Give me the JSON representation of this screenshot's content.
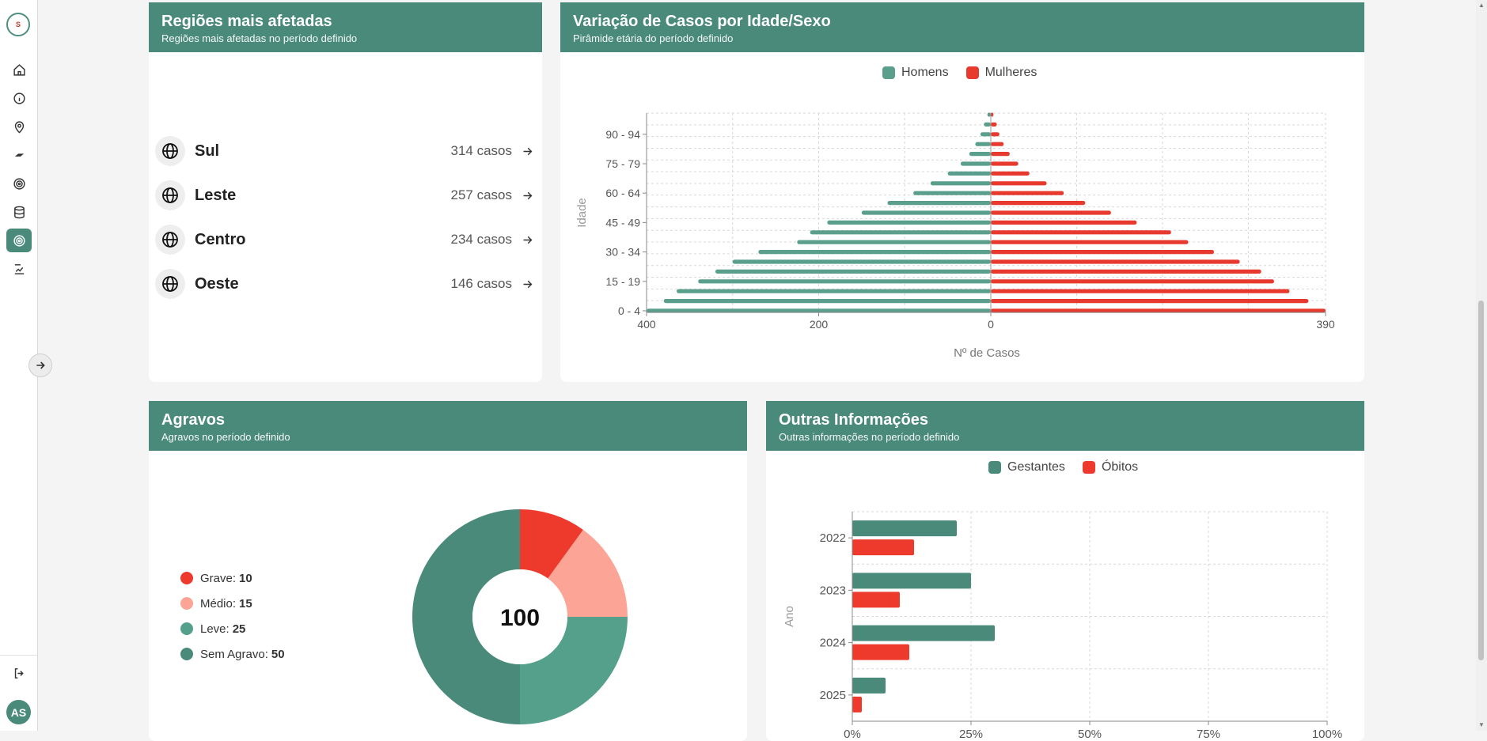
{
  "sidebar": {
    "logo_text": "S",
    "user_initials": "AS",
    "items": [
      {
        "name": "home-icon",
        "active": false
      },
      {
        "name": "info-icon",
        "active": false
      },
      {
        "name": "map-pin-icon",
        "active": false
      },
      {
        "name": "mosquito-icon",
        "active": false
      },
      {
        "name": "radar-icon",
        "active": false
      },
      {
        "name": "database-icon",
        "active": false
      },
      {
        "name": "target-icon",
        "active": true
      },
      {
        "name": "report-icon",
        "active": false
      }
    ]
  },
  "regions_card": {
    "title": "Regiões mais afetadas",
    "subtitle": "Regiões mais afetadas no período definido",
    "items": [
      {
        "name": "Sul",
        "count": "314 casos"
      },
      {
        "name": "Leste",
        "count": "257 casos"
      },
      {
        "name": "Centro",
        "count": "234 casos"
      },
      {
        "name": "Oeste",
        "count": "146 casos"
      }
    ]
  },
  "pyramid_card": {
    "title": "Variação de Casos por Idade/Sexo",
    "subtitle": "Pirâmide etária do período definido",
    "chart_data": {
      "type": "bar",
      "orientation": "horizontal-pyramid",
      "xlabel": "Nº de Casos",
      "ylabel": "Idade",
      "x_ticks_left": [
        "400",
        "200",
        "0"
      ],
      "x_tick_right": "390",
      "y_tick_labels": [
        "0 - 4",
        "15 - 19",
        "30 - 34",
        "45 - 49",
        "60 - 64",
        "75 - 79",
        "90 - 94"
      ],
      "legend": {
        "placement": "top-center"
      },
      "series": [
        {
          "name": "Homens",
          "color": "#5a9e8c",
          "values": [
            400,
            380,
            365,
            340,
            320,
            300,
            270,
            225,
            210,
            190,
            150,
            120,
            90,
            70,
            50,
            35,
            25,
            18,
            12,
            8,
            4
          ]
        },
        {
          "name": "Mulheres",
          "color": "#e8392e",
          "values": [
            390,
            370,
            348,
            330,
            315,
            290,
            260,
            230,
            210,
            170,
            140,
            110,
            85,
            65,
            45,
            32,
            22,
            15,
            10,
            7,
            3
          ]
        }
      ]
    }
  },
  "agravos_card": {
    "title": "Agravos",
    "subtitle": "Agravos no período definido",
    "total": "100",
    "chart_data": {
      "type": "pie",
      "variant": "donut",
      "slices": [
        {
          "label": "Grave",
          "value": 10,
          "color": "#ee3a2c"
        },
        {
          "label": "Médio",
          "value": 15,
          "color": "#fca596"
        },
        {
          "label": "Leve",
          "value": 25,
          "color": "#55a08b"
        },
        {
          "label": "Sem Agravo",
          "value": 50,
          "color": "#4a8a7a"
        }
      ]
    }
  },
  "outras_card": {
    "title": "Outras Informações",
    "subtitle": "Outras informações no período definido",
    "chart_data": {
      "type": "bar",
      "orientation": "horizontal",
      "ylabel": "Ano",
      "categories": [
        "2022",
        "2023",
        "2024",
        "2025"
      ],
      "x_ticks": [
        "0%",
        "25%",
        "50%",
        "75%",
        "100%"
      ],
      "xlim": [
        0,
        100
      ],
      "legend": {
        "placement": "top-center"
      },
      "series": [
        {
          "name": "Gestantes",
          "color": "#4a8a7a",
          "values": [
            22,
            25,
            30,
            7
          ]
        },
        {
          "name": "Óbitos",
          "color": "#ee3a2c",
          "values": [
            13,
            10,
            12,
            2
          ]
        }
      ]
    }
  }
}
